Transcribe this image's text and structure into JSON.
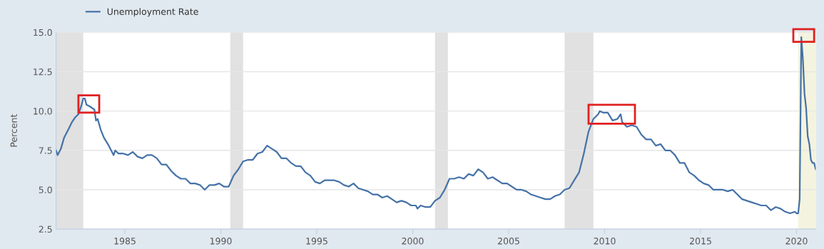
{
  "chart_data": {
    "type": "line",
    "ylabel": "Percent",
    "legend": "top left",
    "grid": "y",
    "marker": "none",
    "line_style": "solid",
    "xlim": [
      "1981-06",
      "2021-01"
    ],
    "ylim": [
      2.5,
      15
    ],
    "xticks": [
      {
        "value": "1985-01",
        "label": "1985"
      },
      {
        "value": "1990-01",
        "label": "1990"
      },
      {
        "value": "1995-01",
        "label": "1995"
      },
      {
        "value": "2000-01",
        "label": "2000"
      },
      {
        "value": "2005-01",
        "label": "2005"
      },
      {
        "value": "2010-01",
        "label": "2010"
      },
      {
        "value": "2015-01",
        "label": "2015"
      },
      {
        "value": "2020-01",
        "label": "2020"
      }
    ],
    "yticks": [
      {
        "value": 2.5,
        "label": "2.5"
      },
      {
        "value": 5,
        "label": "5.0"
      },
      {
        "value": 7.5,
        "label": "7.5"
      },
      {
        "value": 10,
        "label": "10.0"
      },
      {
        "value": 12.5,
        "label": "12.5"
      },
      {
        "value": 15,
        "label": "15.0"
      }
    ],
    "bands": [
      {
        "axis": "x",
        "from": "1981-06",
        "to": "1982-11",
        "color": "#e1e1e1"
      },
      {
        "axis": "x",
        "from": "1990-07",
        "to": "1991-03",
        "color": "#e1e1e1"
      },
      {
        "axis": "x",
        "from": "2001-03",
        "to": "2001-11",
        "color": "#e1e1e1"
      },
      {
        "axis": "x",
        "from": "2007-12",
        "to": "2009-06",
        "color": "#e1e1e1"
      },
      {
        "axis": "x",
        "from": "2020-02",
        "to": "2021-01",
        "color": "#f4f3df"
      }
    ],
    "series": [
      {
        "name": "Unemployment Rate",
        "color": "#4572a7",
        "x": [
          "1981-06",
          "1981-07",
          "1981-09",
          "1981-11",
          "1981-12",
          "1982-02",
          "1982-04",
          "1982-06",
          "1982-08",
          "1982-10",
          "1982-11",
          "1982-12",
          "1983-01",
          "1983-03",
          "1983-06",
          "1983-07",
          "1983-08",
          "1983-10",
          "1983-12",
          "1984-03",
          "1984-06",
          "1984-07",
          "1984-09",
          "1984-12",
          "1985-03",
          "1985-06",
          "1985-09",
          "1985-12",
          "1986-03",
          "1986-06",
          "1986-09",
          "1986-12",
          "1987-03",
          "1987-06",
          "1987-09",
          "1987-12",
          "1988-03",
          "1988-06",
          "1988-09",
          "1988-12",
          "1989-03",
          "1989-06",
          "1989-09",
          "1989-12",
          "1990-03",
          "1990-06",
          "1990-09",
          "1990-12",
          "1991-03",
          "1991-06",
          "1991-09",
          "1991-12",
          "1992-03",
          "1992-06",
          "1992-09",
          "1992-12",
          "1993-03",
          "1993-06",
          "1993-09",
          "1993-12",
          "1994-03",
          "1994-06",
          "1994-09",
          "1994-12",
          "1995-03",
          "1995-06",
          "1995-09",
          "1995-12",
          "1996-03",
          "1996-06",
          "1996-09",
          "1996-12",
          "1997-03",
          "1997-06",
          "1997-09",
          "1997-12",
          "1998-03",
          "1998-06",
          "1998-09",
          "1998-12",
          "1999-03",
          "1999-06",
          "1999-09",
          "1999-12",
          "2000-03",
          "2000-04",
          "2000-06",
          "2000-09",
          "2000-12",
          "2001-03",
          "2001-06",
          "2001-09",
          "2001-12",
          "2002-03",
          "2002-06",
          "2002-09",
          "2002-12",
          "2003-03",
          "2003-06",
          "2003-09",
          "2003-12",
          "2004-03",
          "2004-06",
          "2004-09",
          "2004-12",
          "2005-03",
          "2005-06",
          "2005-09",
          "2005-12",
          "2006-03",
          "2006-06",
          "2006-09",
          "2006-12",
          "2007-03",
          "2007-06",
          "2007-09",
          "2007-12",
          "2008-03",
          "2008-06",
          "2008-09",
          "2008-12",
          "2009-03",
          "2009-06",
          "2009-09",
          "2009-10",
          "2009-12",
          "2010-03",
          "2010-06",
          "2010-09",
          "2010-11",
          "2010-12",
          "2011-03",
          "2011-06",
          "2011-09",
          "2011-12",
          "2012-03",
          "2012-06",
          "2012-09",
          "2012-12",
          "2013-03",
          "2013-06",
          "2013-09",
          "2013-12",
          "2014-03",
          "2014-06",
          "2014-09",
          "2014-12",
          "2015-03",
          "2015-06",
          "2015-09",
          "2015-12",
          "2016-03",
          "2016-06",
          "2016-09",
          "2016-12",
          "2017-03",
          "2017-06",
          "2017-09",
          "2017-12",
          "2018-03",
          "2018-06",
          "2018-09",
          "2018-12",
          "2019-03",
          "2019-06",
          "2019-09",
          "2019-12",
          "2020-01",
          "2020-02",
          "2020-03",
          "2020-04",
          "2020-05",
          "2020-06",
          "2020-07",
          "2020-08",
          "2020-09",
          "2020-10",
          "2020-11",
          "2020-12",
          "2021-01"
        ],
        "values": [
          7.5,
          7.2,
          7.6,
          8.3,
          8.5,
          8.9,
          9.3,
          9.6,
          9.8,
          10.4,
          10.8,
          10.8,
          10.4,
          10.3,
          10.1,
          9.4,
          9.5,
          8.8,
          8.3,
          7.8,
          7.2,
          7.5,
          7.3,
          7.3,
          7.2,
          7.4,
          7.1,
          7.0,
          7.2,
          7.2,
          7.0,
          6.6,
          6.6,
          6.2,
          5.9,
          5.7,
          5.7,
          5.4,
          5.4,
          5.3,
          5.0,
          5.3,
          5.3,
          5.4,
          5.2,
          5.2,
          5.9,
          6.3,
          6.8,
          6.9,
          6.9,
          7.3,
          7.4,
          7.8,
          7.6,
          7.4,
          7.0,
          7.0,
          6.7,
          6.5,
          6.5,
          6.1,
          5.9,
          5.5,
          5.4,
          5.6,
          5.6,
          5.6,
          5.5,
          5.3,
          5.2,
          5.4,
          5.1,
          5.0,
          4.9,
          4.7,
          4.7,
          4.5,
          4.6,
          4.4,
          4.2,
          4.3,
          4.2,
          4.0,
          4.0,
          3.8,
          4.0,
          3.9,
          3.9,
          4.3,
          4.5,
          5.0,
          5.7,
          5.7,
          5.8,
          5.7,
          6.0,
          5.9,
          6.3,
          6.1,
          5.7,
          5.8,
          5.6,
          5.4,
          5.4,
          5.2,
          5.0,
          5.0,
          4.9,
          4.7,
          4.6,
          4.5,
          4.4,
          4.4,
          4.6,
          4.7,
          5.0,
          5.1,
          5.6,
          6.1,
          7.3,
          8.7,
          9.5,
          9.8,
          10.0,
          9.9,
          9.9,
          9.4,
          9.5,
          9.8,
          9.3,
          9.0,
          9.1,
          9.0,
          8.5,
          8.2,
          8.2,
          7.8,
          7.9,
          7.5,
          7.5,
          7.2,
          6.7,
          6.7,
          6.1,
          5.9,
          5.6,
          5.4,
          5.3,
          5.0,
          5.0,
          5.0,
          4.9,
          5.0,
          4.7,
          4.4,
          4.3,
          4.2,
          4.1,
          4.0,
          4.0,
          3.7,
          3.9,
          3.8,
          3.6,
          3.5,
          3.6,
          3.5,
          3.5,
          4.4,
          14.7,
          13.3,
          11.1,
          10.2,
          8.4,
          7.9,
          6.9,
          6.7,
          6.7,
          6.3
        ]
      }
    ]
  }
}
